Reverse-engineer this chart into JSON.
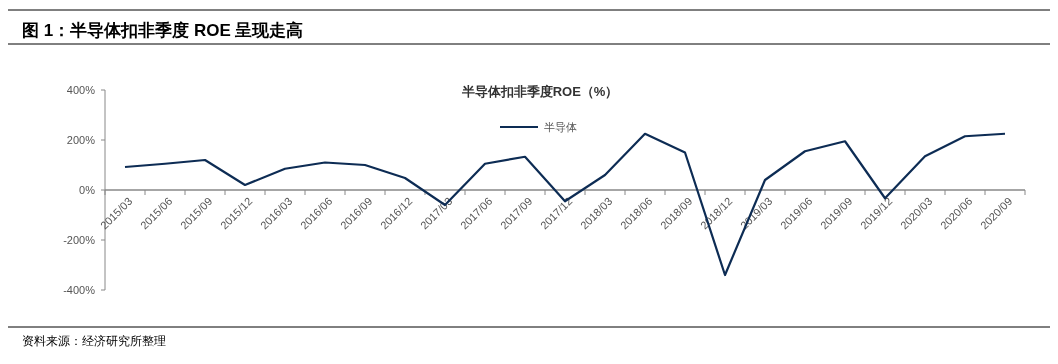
{
  "chart_data": {
    "type": "line",
    "title": "图 1：半导体扣非季度 ROE 呈现走高",
    "subtitle": "半导体扣非季度ROE（%）",
    "categories": [
      "2015/03",
      "2015/06",
      "2015/09",
      "2015/12",
      "2016/03",
      "2016/06",
      "2016/09",
      "2016/12",
      "2017/03",
      "2017/06",
      "2017/09",
      "2017/12",
      "2018/03",
      "2018/06",
      "2018/09",
      "2018/12",
      "2019/03",
      "2019/06",
      "2019/09",
      "2019/12",
      "2020/03",
      "2020/06",
      "2020/09"
    ],
    "series": [
      {
        "name": "半导体",
        "color": "#0d2c54",
        "values": [
          92,
          105,
          120,
          20,
          85,
          110,
          100,
          48,
          -60,
          105,
          133,
          -45,
          60,
          225,
          150,
          -340,
          40,
          155,
          195,
          -33,
          135,
          215,
          225
        ]
      }
    ],
    "ylim": [
      -400,
      400
    ],
    "yticks": [
      {
        "value": -400,
        "label": "-400%"
      },
      {
        "value": -200,
        "label": "-200%"
      },
      {
        "value": 0,
        "label": "0%"
      },
      {
        "value": 200,
        "label": "200%"
      },
      {
        "value": 400,
        "label": "400%"
      }
    ],
    "legend": "top",
    "grid": false,
    "marker": "none",
    "line_style": "solid",
    "annotations": [
      "资料来源：经济研究所整理"
    ]
  }
}
